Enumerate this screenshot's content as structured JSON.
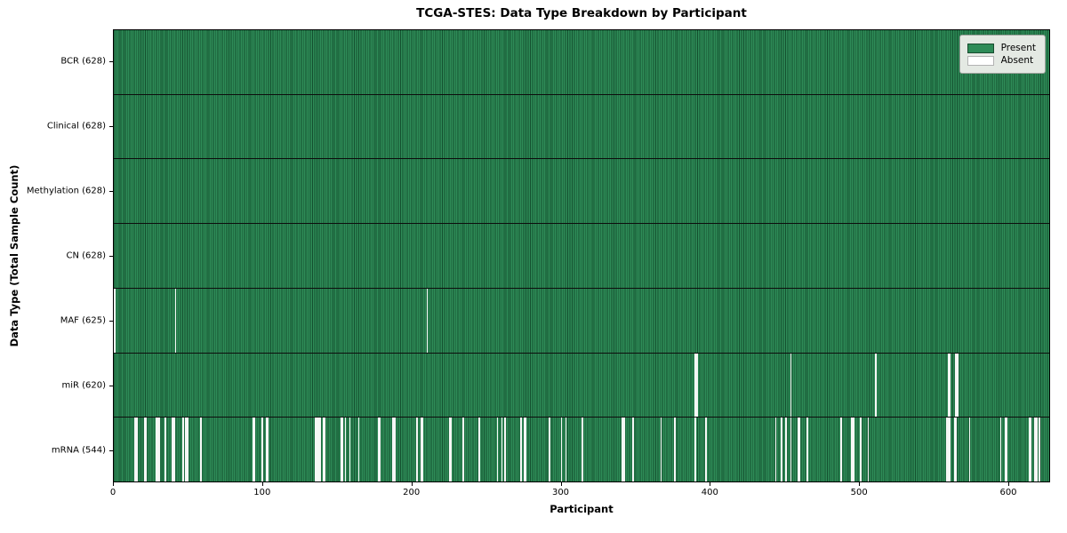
{
  "chart_data": {
    "type": "heatmap",
    "title": "TCGA-STES: Data Type Breakdown by Participant",
    "xlabel": "Participant",
    "ylabel": "Data Type (Total Sample Count)",
    "legend": [
      "Present",
      "Absent"
    ],
    "legend_position": "upper right",
    "grid": false,
    "n_participants": 628,
    "xlim": [
      0,
      628
    ],
    "x_ticks": [
      0,
      100,
      200,
      300,
      400,
      500,
      600
    ],
    "colors": {
      "present": "#2e8b57",
      "present_edge": "#14502f",
      "absent": "#f6f7f6"
    },
    "rows": [
      {
        "key": "bcr",
        "label": "BCR (628)",
        "total_present": 628,
        "absent": []
      },
      {
        "key": "clinical",
        "label": "Clinical (628)",
        "total_present": 628,
        "absent": []
      },
      {
        "key": "methylation",
        "label": "Methylation (628)",
        "total_present": 628,
        "absent": []
      },
      {
        "key": "cn",
        "label": "CN (628)",
        "total_present": 628,
        "absent": []
      },
      {
        "key": "maf",
        "label": "MAF (625)",
        "total_present": 625,
        "absent": [
          0,
          41,
          210
        ]
      },
      {
        "key": "mir",
        "label": "miR (620)",
        "total_present": 620,
        "absent": [
          390,
          391,
          454,
          511,
          560,
          561,
          565,
          566
        ]
      },
      {
        "key": "mrna",
        "label": "mRNA (544)",
        "total_present": 544,
        "absent": [
          14,
          15,
          20,
          21,
          28,
          29,
          30,
          34,
          39,
          40,
          46,
          48,
          49,
          58,
          93,
          94,
          99,
          102,
          103,
          135,
          136,
          137,
          138,
          140,
          141,
          152,
          153,
          155,
          158,
          164,
          177,
          178,
          187,
          188,
          203,
          206,
          207,
          225,
          226,
          234,
          245,
          257,
          260,
          262,
          273,
          275,
          276,
          292,
          300,
          303,
          314,
          341,
          342,
          348,
          367,
          376,
          390,
          397,
          444,
          448,
          451,
          454,
          459,
          460,
          465,
          488,
          495,
          496,
          501,
          506,
          559,
          560,
          561,
          564,
          565,
          574,
          595,
          598,
          599,
          614,
          615,
          618,
          619,
          621
        ]
      }
    ]
  }
}
